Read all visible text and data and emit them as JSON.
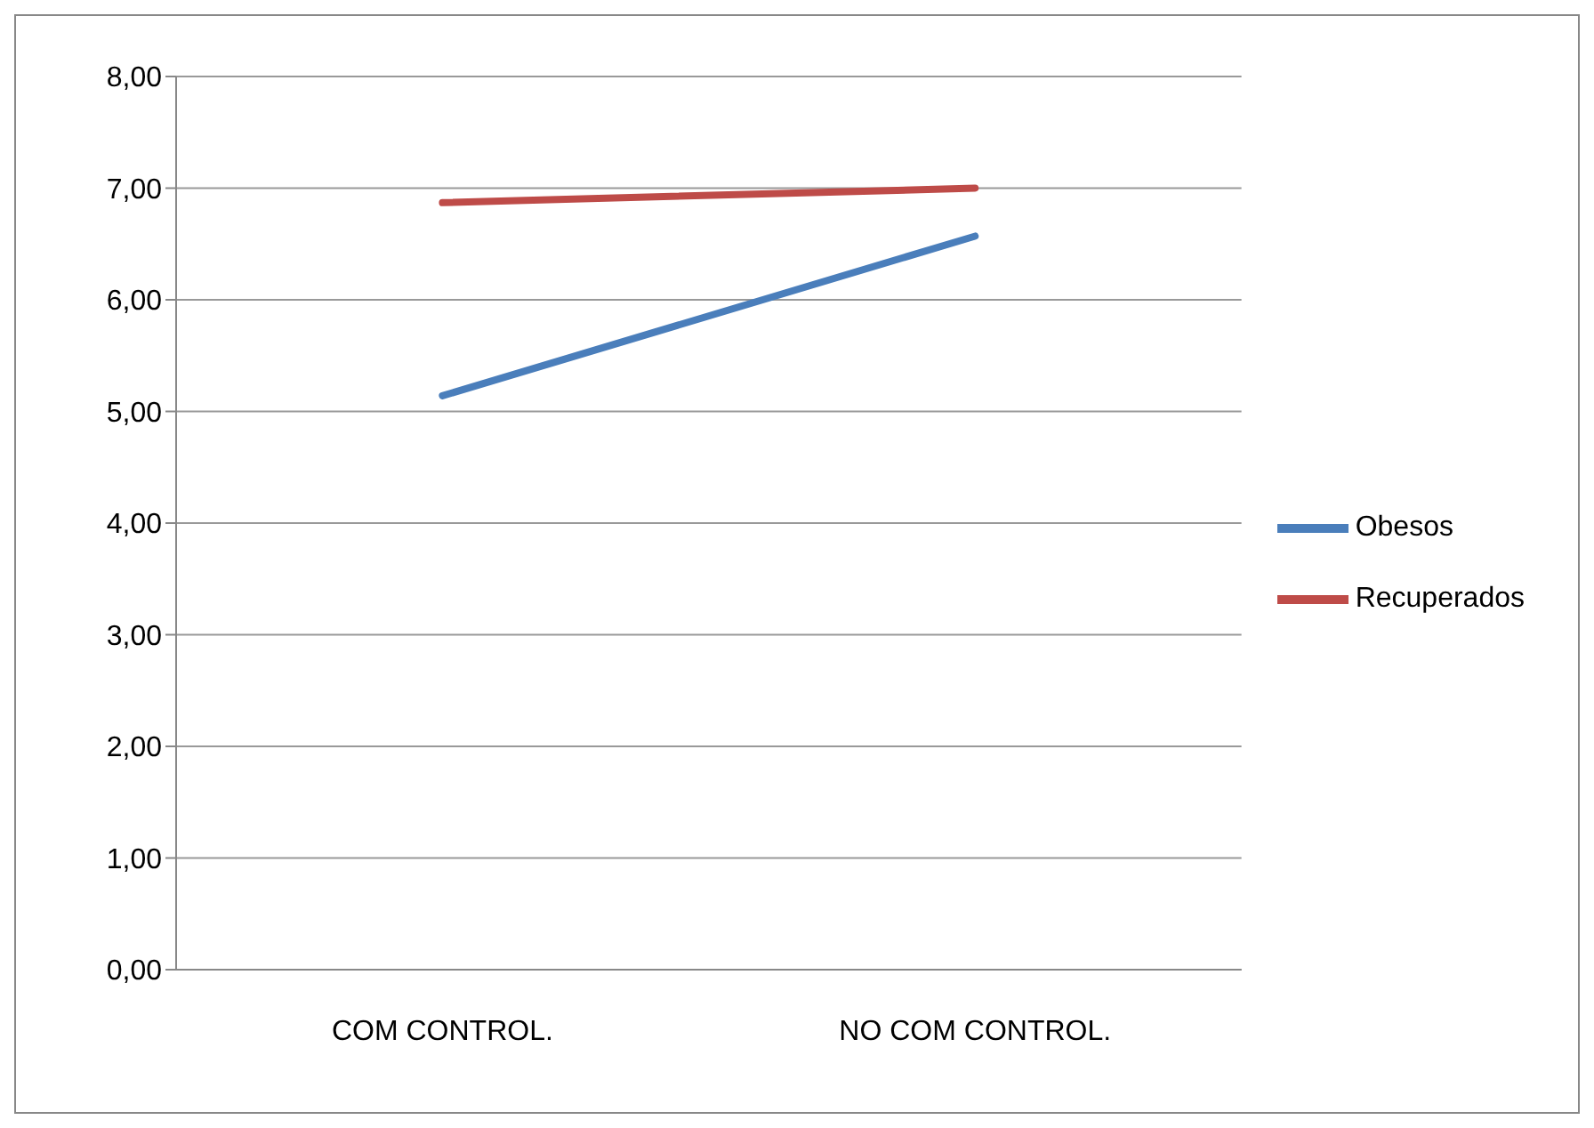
{
  "chart_data": {
    "type": "line",
    "categories": [
      "COM CONTROL.",
      "NO COM CONTROL."
    ],
    "series": [
      {
        "name": "Obesos",
        "color": "#4a7ebb",
        "values": [
          5.14,
          6.57
        ]
      },
      {
        "name": "Recuperados",
        "color": "#be4b48",
        "values": [
          6.87,
          7.0
        ]
      }
    ],
    "ylim": [
      0,
      8
    ],
    "yticks": [
      {
        "value": 0,
        "label": "0,00"
      },
      {
        "value": 1,
        "label": "1,00"
      },
      {
        "value": 2,
        "label": "2,00"
      },
      {
        "value": 3,
        "label": "3,00"
      },
      {
        "value": 4,
        "label": "4,00"
      },
      {
        "value": 5,
        "label": "5,00"
      },
      {
        "value": 6,
        "label": "6,00"
      },
      {
        "value": 7,
        "label": "7,00"
      },
      {
        "value": 8,
        "label": "8,00"
      }
    ],
    "grid": "y",
    "legend": "right",
    "marker": "none",
    "line_style": "solid"
  }
}
